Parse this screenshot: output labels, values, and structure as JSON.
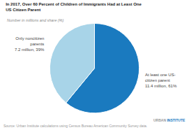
{
  "chart_data": {
    "type": "pie",
    "title": "In 2017, Over 60 Percent of Children of Immigrants Had at Least One\nUS Citizen Parent",
    "subtitle": "Number in millions and share (%)",
    "values": [
      61,
      39
    ],
    "value_labels": [
      "At least one US-\ncitizen parent\n11.4 million, 61%",
      "Only noncitizen\nparents\n7.2 million, 39%"
    ],
    "data_labels": true,
    "colors": [
      "#1a7abf",
      "#a8d4e8"
    ],
    "annotations": [
      "Source: Urban Institute calculations using Census Bureau American Community Survey data.",
      "URBAN",
      "INSTITUTE"
    ]
  }
}
